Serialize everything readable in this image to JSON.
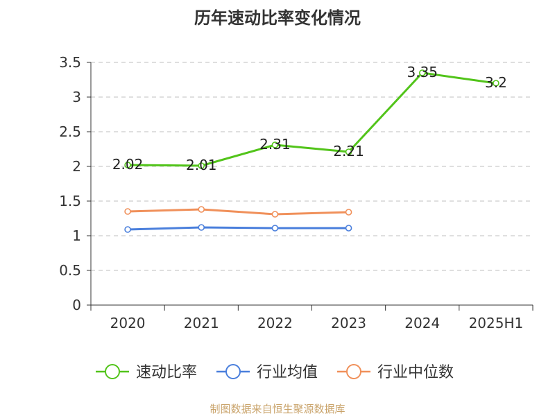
{
  "title": "历年速动比率变化情况",
  "source": "制图数据来自恒生聚源数据库",
  "chart_data": {
    "type": "line",
    "title": "历年速动比率变化情况",
    "categories": [
      "2020",
      "2021",
      "2022",
      "2023",
      "2024",
      "2025H1"
    ],
    "ylim": [
      0,
      3.5
    ],
    "yticks": [
      0,
      0.5,
      1,
      1.5,
      2,
      2.5,
      3,
      3.5
    ],
    "ytick_labels": [
      "0",
      "0.5",
      "1",
      "1.5",
      "2",
      "2.5",
      "3",
      "3.5"
    ],
    "grid": true,
    "legend_position": "bottom",
    "series": [
      {
        "name": "速动比率",
        "color": "#52c41a",
        "values": [
          2.02,
          2.01,
          2.31,
          2.21,
          3.35,
          3.2
        ],
        "labels": [
          "2.02",
          "2.01",
          "2.31",
          "2.21",
          "3.35",
          "3.2"
        ],
        "show_labels": true
      },
      {
        "name": "行业均值",
        "color": "#4a7fdc",
        "values": [
          1.09,
          1.12,
          1.11,
          1.11,
          null,
          null
        ],
        "show_labels": false
      },
      {
        "name": "行业中位数",
        "color": "#f0905a",
        "values": [
          1.35,
          1.38,
          1.31,
          1.34,
          null,
          null
        ],
        "show_labels": false
      }
    ]
  }
}
